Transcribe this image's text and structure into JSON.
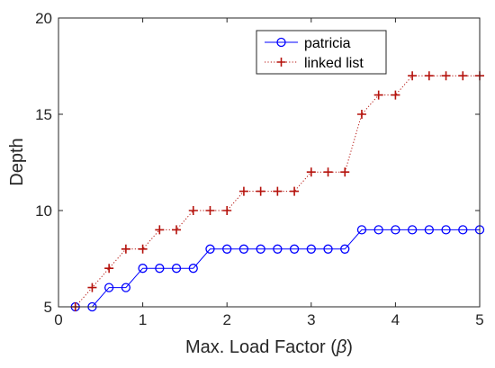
{
  "chart_data": {
    "type": "line",
    "xlabel_prefix": "Max. Load Factor (",
    "xlabel_symbol": "β",
    "xlabel_suffix": ")",
    "ylabel": "Depth",
    "xlim": [
      0,
      5
    ],
    "ylim": [
      5,
      20
    ],
    "xticks": [
      "0",
      "1",
      "2",
      "3",
      "4",
      "5"
    ],
    "xtick_values": [
      0,
      1,
      2,
      3,
      4,
      5
    ],
    "yticks": [
      "5",
      "10",
      "15",
      "20"
    ],
    "ytick_values": [
      5,
      10,
      15,
      20
    ],
    "grid": false,
    "legend_position": "top-right",
    "series": [
      {
        "name": "patricia",
        "color": "#0000ff",
        "line_style": "solid",
        "marker": "circle",
        "x": [
          0.2,
          0.4,
          0.6,
          0.8,
          1.0,
          1.2,
          1.4,
          1.6,
          1.8,
          2.0,
          2.2,
          2.4,
          2.6,
          2.8,
          3.0,
          3.2,
          3.4,
          3.6,
          3.8,
          4.0,
          4.2,
          4.4,
          4.6,
          4.8,
          5.0
        ],
        "y": [
          5,
          5,
          6,
          6,
          7,
          7,
          7,
          7,
          8,
          8,
          8,
          8,
          8,
          8,
          8,
          8,
          8,
          9,
          9,
          9,
          9,
          9,
          9,
          9,
          9
        ]
      },
      {
        "name": "linked list",
        "color": "#b5120c",
        "line_style": "dotted",
        "marker": "plus",
        "x": [
          0.2,
          0.4,
          0.6,
          0.8,
          1.0,
          1.2,
          1.4,
          1.6,
          1.8,
          2.0,
          2.2,
          2.4,
          2.6,
          2.8,
          3.0,
          3.2,
          3.4,
          3.6,
          3.8,
          4.0,
          4.2,
          4.4,
          4.6,
          4.8,
          5.0
        ],
        "y": [
          5,
          6,
          7,
          8,
          8,
          9,
          9,
          10,
          10,
          10,
          11,
          11,
          11,
          11,
          12,
          12,
          12,
          15,
          16,
          16,
          17,
          17,
          17,
          17,
          17
        ]
      }
    ]
  }
}
